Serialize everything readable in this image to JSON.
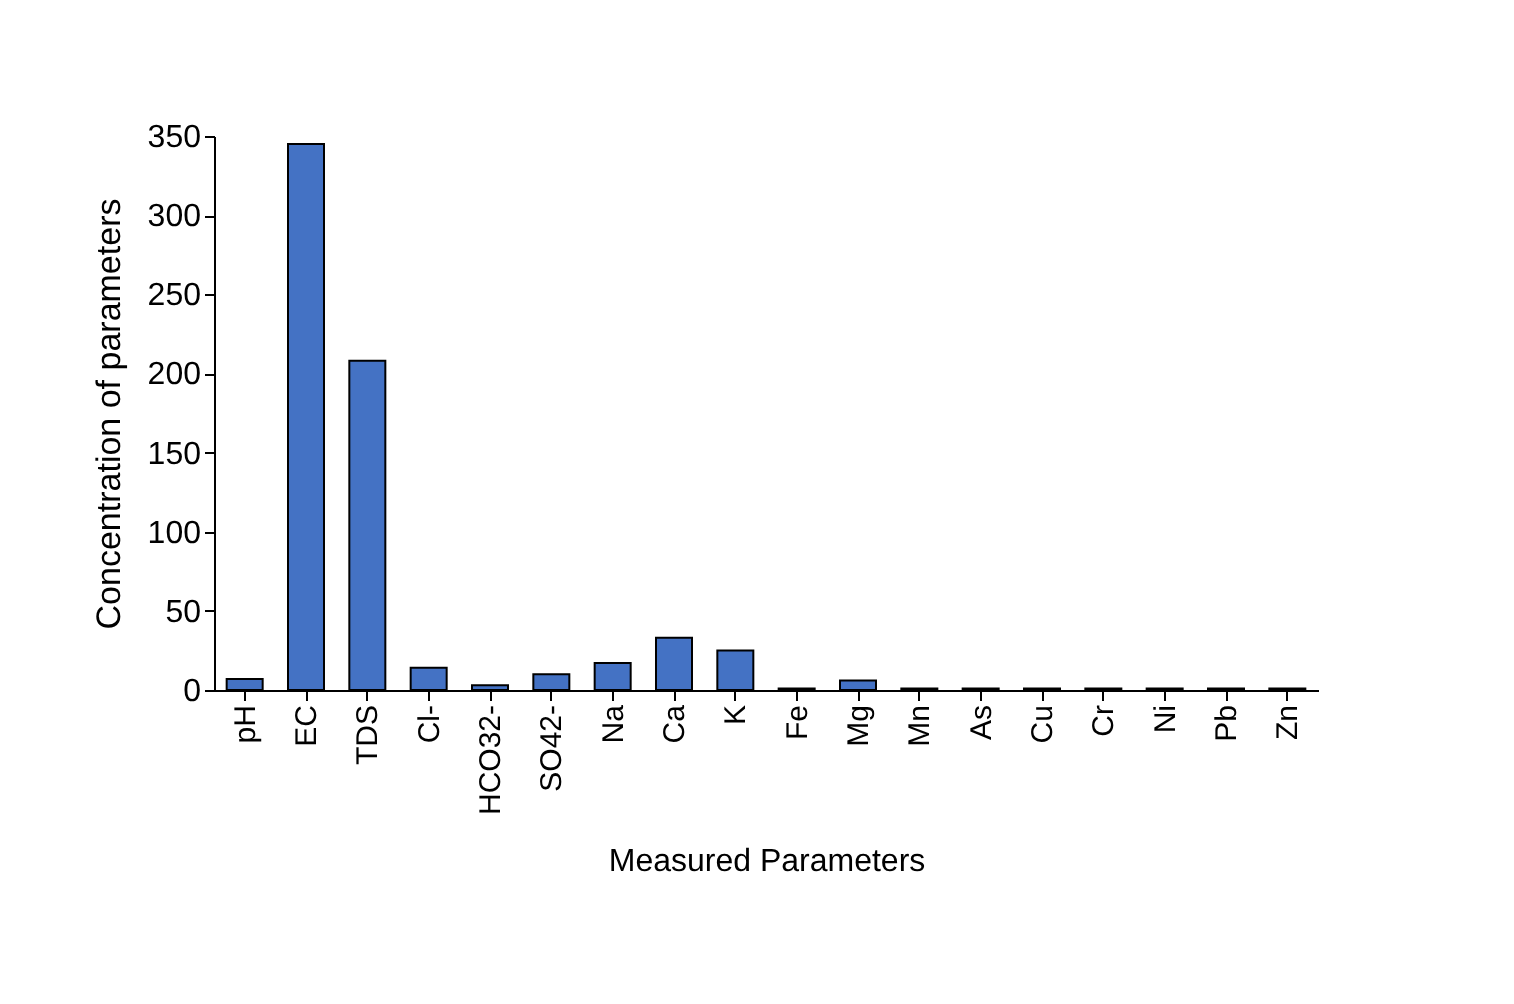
{
  "chart_data": {
    "type": "bar",
    "xlabel": "Measured Parameters",
    "ylabel": "Concentration of parameters",
    "categories": [
      "pH",
      "EC",
      "TDS",
      "Cl-",
      "HCO32-",
      "SO42-",
      "Na",
      "Ca",
      "K",
      "Fe",
      "Mg",
      "Mn",
      "As",
      "Cu",
      "Cr",
      "Ni",
      "Pb",
      "Zn"
    ],
    "values": [
      7,
      345,
      208,
      14,
      3,
      10,
      17,
      33,
      25,
      1,
      6,
      1,
      1,
      1,
      1,
      1,
      1,
      1
    ],
    "color": "#4472c4",
    "ylim": [
      0,
      350
    ],
    "yticks": [
      0,
      50,
      100,
      150,
      200,
      250,
      300,
      350
    ],
    "grid": false
  }
}
